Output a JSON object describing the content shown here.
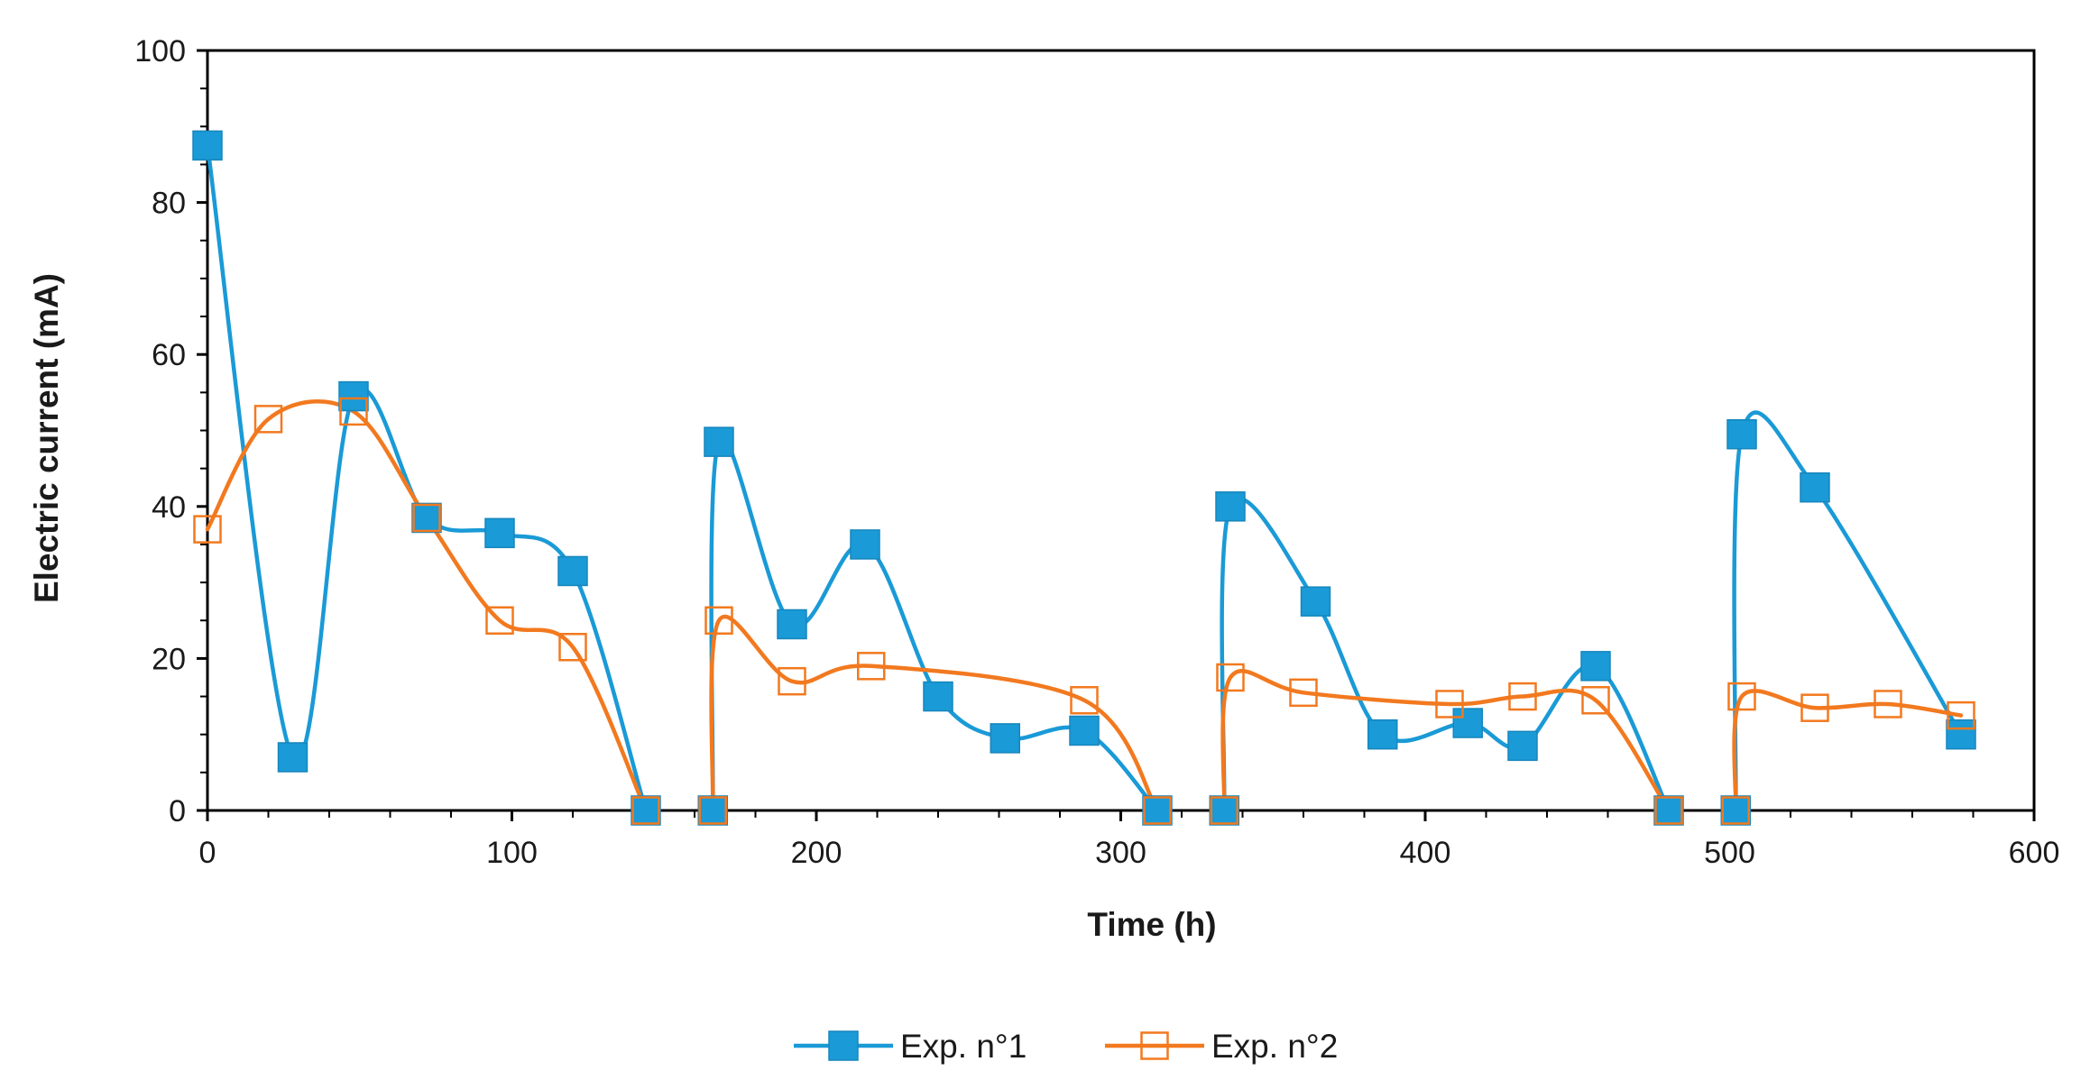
{
  "chart_data": {
    "type": "scatter",
    "title": "",
    "xlabel": "Time (h)",
    "ylabel": "Electric current (mA)",
    "xlim": [
      0,
      600
    ],
    "ylim": [
      0,
      100
    ],
    "xticks": [
      "0",
      "100",
      "200",
      "300",
      "400",
      "500",
      "600"
    ],
    "yticks": [
      "0",
      "20",
      "40",
      "60",
      "80",
      "100"
    ],
    "xtick_values": [
      0,
      100,
      200,
      300,
      400,
      500,
      600
    ],
    "ytick_values": [
      0,
      20,
      40,
      60,
      80,
      100
    ],
    "grid": false,
    "legend_position": "bottom-center",
    "series": [
      {
        "name": "Exp. n°1",
        "color": "#1a9ad6",
        "marker": "filled-square",
        "segments": [
          [
            [
              0,
              87.5
            ],
            [
              28,
              7
            ],
            [
              48,
              54.5
            ],
            [
              72,
              38.5
            ],
            [
              96,
              36.5
            ],
            [
              120,
              31.5
            ],
            [
              144,
              0
            ]
          ],
          [
            [
              166,
              0
            ],
            [
              168,
              48.5
            ],
            [
              192,
              24.5
            ],
            [
              216,
              35
            ],
            [
              240,
              15
            ],
            [
              262,
              9.5
            ],
            [
              288,
              10.5
            ],
            [
              312,
              0
            ]
          ],
          [
            [
              334,
              0
            ],
            [
              336,
              40
            ],
            [
              364,
              27.5
            ],
            [
              386,
              10
            ],
            [
              414,
              11.5
            ],
            [
              432,
              8.5
            ],
            [
              456,
              19
            ],
            [
              480,
              0
            ]
          ],
          [
            [
              502,
              0
            ],
            [
              504,
              49.5
            ],
            [
              528,
              42.5
            ],
            [
              576,
              10
            ]
          ]
        ]
      },
      {
        "name": "Exp. n°2",
        "color": "#f2791f",
        "marker": "open-square",
        "segments": [
          [
            [
              0,
              37
            ],
            [
              20,
              51.5
            ],
            [
              48,
              52.5
            ],
            [
              72,
              38.5
            ],
            [
              96,
              25
            ],
            [
              120,
              21.5
            ],
            [
              144,
              0
            ]
          ],
          [
            [
              166,
              0
            ],
            [
              168,
              25
            ],
            [
              192,
              17
            ],
            [
              218,
              19
            ],
            [
              288,
              14.5
            ],
            [
              312,
              0
            ]
          ],
          [
            [
              334,
              0
            ],
            [
              336,
              17.5
            ],
            [
              360,
              15.5
            ],
            [
              408,
              14
            ],
            [
              432,
              15
            ],
            [
              456,
              14.5
            ],
            [
              480,
              0
            ]
          ],
          [
            [
              502,
              0
            ],
            [
              504,
              15
            ],
            [
              528,
              13.5
            ],
            [
              552,
              14
            ],
            [
              576,
              12.5
            ]
          ]
        ]
      }
    ]
  }
}
